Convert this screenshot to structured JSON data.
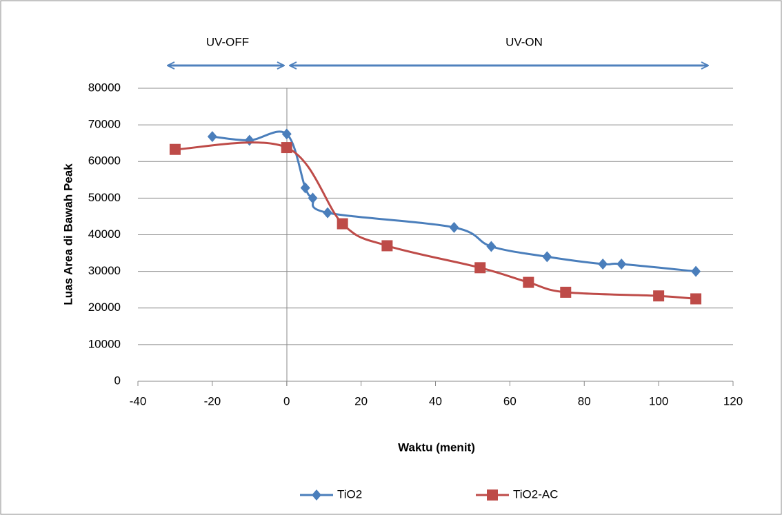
{
  "chart_data": {
    "type": "line",
    "x_label": "Waktu (menit)",
    "y_label": "Luas Area di Bawah Peak",
    "annotations": [
      "UV-OFF",
      "UV-ON"
    ],
    "xlim": [
      -40,
      120
    ],
    "xticks": [
      -40,
      -20,
      0,
      20,
      40,
      60,
      80,
      100,
      120
    ],
    "ylim": [
      0,
      80000
    ],
    "yticks": [
      0,
      10000,
      20000,
      30000,
      40000,
      50000,
      60000,
      70000,
      80000
    ],
    "grid": true,
    "legend": "bottom",
    "series": [
      {
        "name": "TiO2",
        "color": "#4a7ebb",
        "marker": "diamond",
        "x": [
          -20,
          -10,
          0,
          5,
          7,
          11,
          45,
          55,
          70,
          85,
          90,
          110
        ],
        "values": [
          66800,
          65800,
          67500,
          52800,
          50000,
          46000,
          42000,
          36800,
          34000,
          32000,
          32000,
          30000
        ]
      },
      {
        "name": "TiO2-AC",
        "color": "#be4b48",
        "marker": "square",
        "x": [
          -30,
          0,
          15,
          27,
          52,
          65,
          75,
          100,
          110
        ],
        "values": [
          63300,
          63800,
          43000,
          37000,
          31000,
          27000,
          24300,
          23300,
          22500
        ]
      }
    ]
  }
}
